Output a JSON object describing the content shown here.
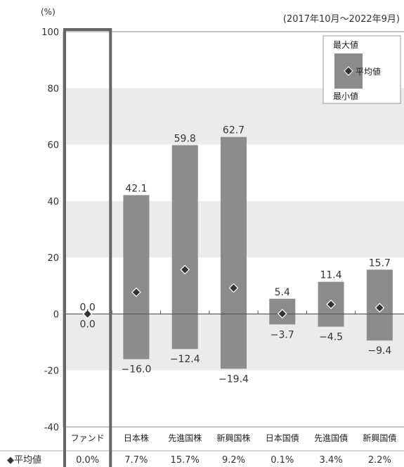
{
  "chart_data": {
    "type": "range-bar",
    "unit_label": "(%)",
    "period": "(2017年10月～2022年9月)",
    "y_ticks": [
      100,
      80,
      60,
      40,
      20,
      0,
      -20,
      -40
    ],
    "ylim": [
      -40,
      100
    ],
    "grid": "banded",
    "categories": [
      "ファンド",
      "日本株",
      "先進国株",
      "新興国株",
      "日本国債",
      "先進国債",
      "新興国債"
    ],
    "max": [
      0.0,
      42.1,
      59.8,
      62.7,
      5.4,
      11.4,
      15.7
    ],
    "min": [
      0.0,
      -16.0,
      -12.4,
      -19.4,
      -3.7,
      -4.5,
      -9.4
    ],
    "avg": [
      0.0,
      7.7,
      15.7,
      9.2,
      0.1,
      3.4,
      2.2
    ],
    "max_labels": [
      "0.0",
      "42.1",
      "59.8",
      "62.7",
      "5.4",
      "11.4",
      "15.7"
    ],
    "min_labels": [
      "0.0",
      "−16.0",
      "−12.4",
      "−19.4",
      "−3.7",
      "−4.5",
      "−9.4"
    ],
    "avg_row_label": "◆平均値",
    "avg_labels": [
      "0.0%",
      "7.7%",
      "15.7%",
      "9.2%",
      "0.1%",
      "3.4%",
      "2.2%"
    ],
    "legend": {
      "max": "最大値",
      "avg": "平均値",
      "min": "最小値",
      "placement": "top-right"
    },
    "highlighted_category": "ファンド",
    "colors": {
      "bar": "#8c8c8c",
      "band": "#ebebeb",
      "marker": "#333333",
      "highlight_frame": "#666666"
    }
  }
}
